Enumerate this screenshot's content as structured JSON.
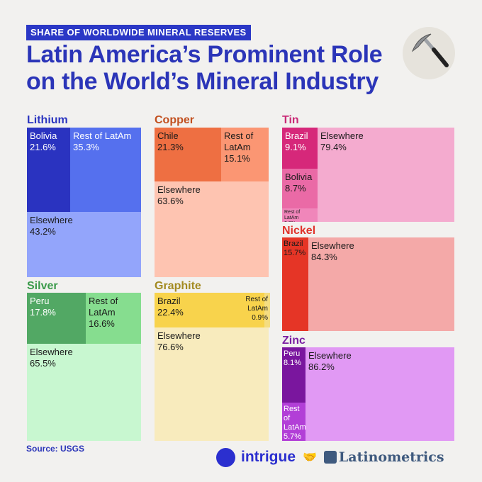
{
  "header": {
    "kicker": "SHARE OF WORLDWIDE MINERAL RESERVES",
    "title_line1": "Latin America’s Prominent Role",
    "title_line2": "on the World’s Mineral Industry",
    "icon": "pickaxe-icon"
  },
  "footer": {
    "source": "Source: USGS",
    "brand1": "intrigue",
    "handshake": "🤝",
    "brand2": "Latinometrics"
  },
  "chart_data": {
    "type": "treemap",
    "title": "Latin America’s Prominent Role on the World’s Mineral Industry",
    "subtitle": "SHARE OF WORLDWIDE MINERAL RESERVES",
    "source": "USGS",
    "unit": "%",
    "minerals": [
      {
        "name": "Lithium",
        "color": "#2b35c0",
        "segments": [
          {
            "label": "Bolivia",
            "value": 21.6,
            "color": "#2a33c0"
          },
          {
            "label": "Rest of LatAm",
            "value": 35.3,
            "color": "#5570ee"
          },
          {
            "label": "Elsewhere",
            "value": 43.2,
            "color": "#93a5fb"
          }
        ]
      },
      {
        "name": "Copper",
        "color": "#c2501f",
        "segments": [
          {
            "label": "Chile",
            "value": 21.3,
            "color": "#ee6f42"
          },
          {
            "label": "Rest of LatAm",
            "value": 15.1,
            "color": "#fb9673"
          },
          {
            "label": "Elsewhere",
            "value": 63.6,
            "color": "#fec4b1"
          }
        ]
      },
      {
        "name": "Tin",
        "color": "#c92a76",
        "segments": [
          {
            "label": "Brazil",
            "value": 9.1,
            "color": "#d6287a"
          },
          {
            "label": "Bolivia",
            "value": 8.7,
            "color": "#ea6aa6"
          },
          {
            "label": "Rest of LatAm",
            "value": 2.8,
            "color": "#f086ba"
          },
          {
            "label": "Elsewhere",
            "value": 79.4,
            "color": "#f4abcf"
          }
        ]
      },
      {
        "name": "Nickel",
        "color": "#e0322a",
        "segments": [
          {
            "label": "Brazil",
            "value": 15.7,
            "color": "#e53526"
          },
          {
            "label": "Elsewhere",
            "value": 84.3,
            "color": "#f4a9a8"
          }
        ]
      },
      {
        "name": "Silver",
        "color": "#3a9a4a",
        "segments": [
          {
            "label": "Peru",
            "value": 17.8,
            "color": "#52a864"
          },
          {
            "label": "Rest of LatAm",
            "value": 16.6,
            "color": "#86dd8f"
          },
          {
            "label": "Elsewhere",
            "value": 65.5,
            "color": "#c8f7d0"
          }
        ]
      },
      {
        "name": "Graphite",
        "color": "#a38a20",
        "segments": [
          {
            "label": "Brazil",
            "value": 22.4,
            "color": "#f8d34c"
          },
          {
            "label": "Rest of LatAm",
            "value": 0.9,
            "color": "#f5dd80"
          },
          {
            "label": "Elsewhere",
            "value": 76.6,
            "color": "#f8ebbd"
          }
        ]
      },
      {
        "name": "Zinc",
        "color": "#7b1fa2",
        "segments": [
          {
            "label": "Peru",
            "value": 8.1,
            "color": "#7a169e"
          },
          {
            "label": "Rest of LatAm",
            "value": 5.7,
            "color": "#b23fd7"
          },
          {
            "label": "Elsewhere",
            "value": 86.2,
            "color": "#e199f4"
          }
        ]
      }
    ]
  }
}
